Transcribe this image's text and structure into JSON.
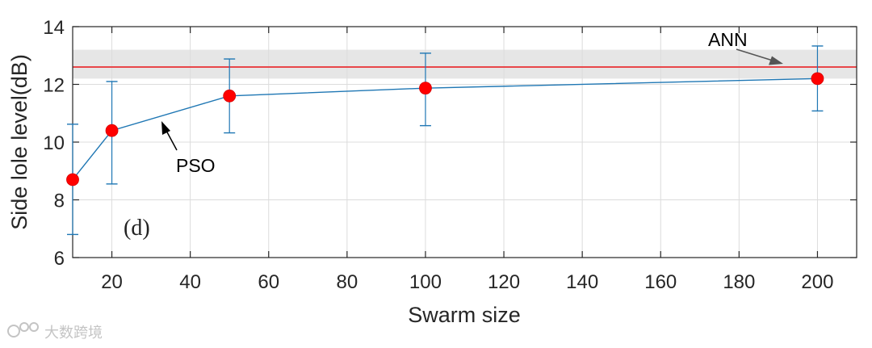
{
  "chart_data": {
    "type": "line",
    "title": "",
    "xlabel": "Swarm size",
    "ylabel": "Side lole level(dB)",
    "xlim": [
      10,
      210
    ],
    "ylim": [
      6,
      14
    ],
    "xticks": [
      20,
      40,
      60,
      80,
      100,
      120,
      140,
      160,
      180,
      200
    ],
    "yticks": [
      6,
      8,
      10,
      12,
      14
    ],
    "grid": true,
    "panel_label": "(d)",
    "series": [
      {
        "name": "PSO",
        "color": "#1f77b4",
        "marker_color": "#ff0000",
        "x": [
          10,
          20,
          50,
          100,
          200
        ],
        "y": [
          8.7,
          10.4,
          11.6,
          11.87,
          12.2
        ],
        "err_low": [
          6.8,
          8.55,
          10.32,
          10.57,
          11.08
        ],
        "err_high": [
          10.62,
          12.1,
          12.88,
          13.08,
          13.33
        ]
      },
      {
        "name": "ANN",
        "color": "#e8474a",
        "band_color": "#e6e6e6",
        "y": 12.6,
        "band": [
          12.2,
          13.2
        ]
      }
    ],
    "annotations": [
      {
        "text": "ANN",
        "x": 192,
        "y": 13.35,
        "arrow_to": [
          12.92,
          192
        ]
      },
      {
        "text": "PSO",
        "x": 33,
        "y": 9.0,
        "arrow_to": [
          10.7,
          32.5
        ]
      }
    ]
  },
  "watermark": {
    "text": "大数跨境",
    "logo": "ics-logo"
  }
}
